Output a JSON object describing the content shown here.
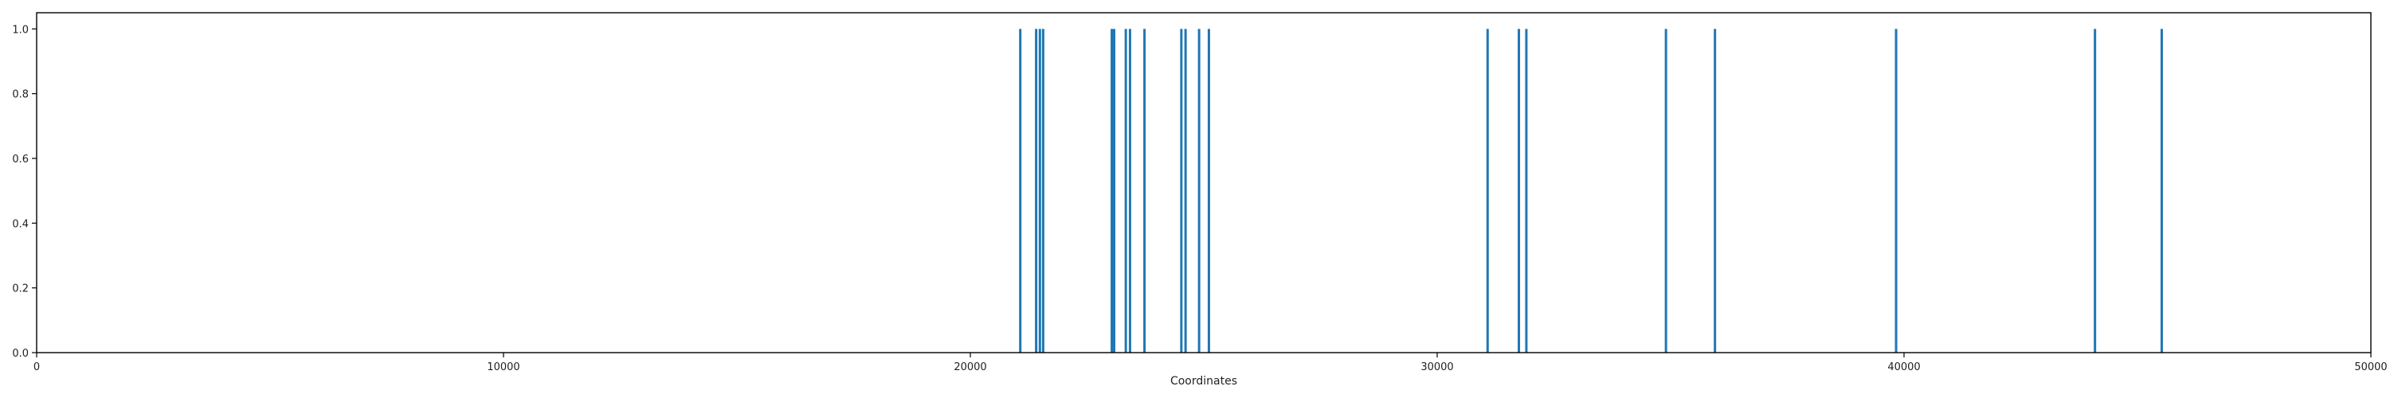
{
  "chart_data": {
    "type": "bar",
    "xlabel": "Coordinates",
    "ylabel": "",
    "title": "",
    "xlim": [
      0,
      50000
    ],
    "ylim": [
      0,
      1.05
    ],
    "grid": false,
    "x_ticks": [
      0,
      10000,
      20000,
      30000,
      40000,
      50000
    ],
    "x_tick_labels": [
      "0",
      "10000",
      "20000",
      "30000",
      "40000",
      "50000"
    ],
    "y_ticks": [
      0.0,
      0.2,
      0.4,
      0.6,
      0.8,
      1.0
    ],
    "y_tick_labels": [
      "0.0",
      "0.2",
      "0.4",
      "0.6",
      "0.8",
      "1.0"
    ],
    "bar_color": "#1f77b4",
    "series": [
      {
        "x": [
          21070,
          21410,
          21490,
          21560,
          23030,
          23080,
          23330,
          23420,
          23730,
          24520,
          24610,
          24900,
          25110,
          31080,
          31750,
          31910,
          34900,
          35950,
          39830,
          44090,
          45520
        ],
        "values": [
          1,
          1,
          1,
          1,
          1,
          1,
          1,
          1,
          1,
          1,
          1,
          1,
          1,
          1,
          1,
          1,
          1,
          1,
          1,
          1,
          1
        ]
      }
    ]
  }
}
